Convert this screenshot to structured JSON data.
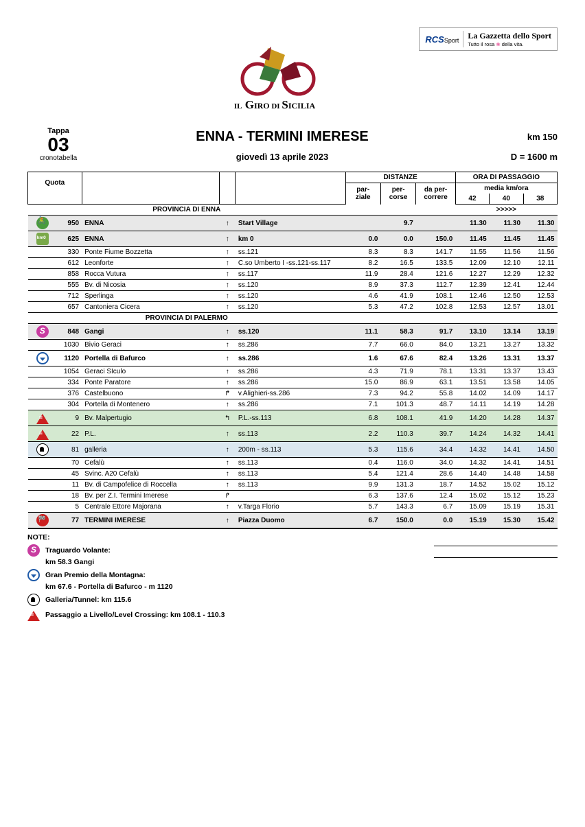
{
  "sponsor": {
    "rcs": "RCS",
    "rcs_sub": "Sport",
    "gazzetta": "La Gazzetta dello Sport",
    "sub_pre": "Tutto il rosa",
    "sub_post": "della vita."
  },
  "logo_text": "IL GIRO DI SICILIA",
  "stage": {
    "label": "Tappa",
    "number": "03",
    "sub": "cronotabella"
  },
  "title": "ENNA - TERMINI IMERESE",
  "date": "giovedì 13 aprile 2023",
  "distance": "km 150",
  "elevation": "D = 1600 m",
  "head": {
    "quota": "Quota",
    "distanze": "DISTANZE",
    "ora": "ORA DI PASSAGGIO",
    "parziale": "par-\nziale",
    "percorse": "per-\ncorse",
    "dapercorrere": "da per-\ncorrere",
    "media": "media km/ora",
    "s42": "42",
    "s40": "40",
    "s38": "38",
    "arrows": ">>>>>"
  },
  "sections": {
    "enna": "PROVINCIA DI ENNA",
    "palermo": "PROVINCIA DI PALERMO"
  },
  "rows": [
    {
      "icon": "start",
      "q": "950",
      "loc": "ENNA",
      "ar": "↑",
      "road": "Start Village",
      "pz": "",
      "pc": "9.7",
      "dp": "",
      "t42": "11.30",
      "t40": "11.30",
      "t38": "11.30",
      "cls": "bold gray"
    },
    {
      "icon": "km0",
      "q": "625",
      "loc": "ENNA",
      "ar": "↑",
      "road": "km 0",
      "pz": "0.0",
      "pc": "0.0",
      "dp": "150.0",
      "t42": "11.45",
      "t40": "11.45",
      "t38": "11.45",
      "cls": "bold gray"
    },
    {
      "icon": "",
      "q": "330",
      "loc": "Ponte Fiume Bozzetta",
      "ar": "↑",
      "road": "ss.121",
      "pz": "8.3",
      "pc": "8.3",
      "dp": "141.7",
      "t42": "11.55",
      "t40": "11.56",
      "t38": "11.56",
      "cls": ""
    },
    {
      "icon": "",
      "q": "612",
      "loc": "Leonforte",
      "ar": "↑",
      "road": "C.so Umberto I -ss.121-ss.117",
      "pz": "8.2",
      "pc": "16.5",
      "dp": "133.5",
      "t42": "12.09",
      "t40": "12.10",
      "t38": "12.11",
      "cls": ""
    },
    {
      "icon": "",
      "q": "858",
      "loc": "Rocca Vutura",
      "ar": "↑",
      "road": "ss.117",
      "pz": "11.9",
      "pc": "28.4",
      "dp": "121.6",
      "t42": "12.27",
      "t40": "12.29",
      "t38": "12.32",
      "cls": ""
    },
    {
      "icon": "",
      "q": "555",
      "loc": "Bv. di Nicosia",
      "ar": "↑",
      "road": "ss.120",
      "pz": "8.9",
      "pc": "37.3",
      "dp": "112.7",
      "t42": "12.39",
      "t40": "12.41",
      "t38": "12.44",
      "cls": ""
    },
    {
      "icon": "",
      "q": "712",
      "loc": "Sperlinga",
      "ar": "↑",
      "road": "ss.120",
      "pz": "4.6",
      "pc": "41.9",
      "dp": "108.1",
      "t42": "12.46",
      "t40": "12.50",
      "t38": "12.53",
      "cls": ""
    },
    {
      "icon": "",
      "q": "657",
      "loc": "Cantoniera Cicera",
      "ar": "↑",
      "road": "ss.120",
      "pz": "5.3",
      "pc": "47.2",
      "dp": "102.8",
      "t42": "12.53",
      "t40": "12.57",
      "t38": "13.01",
      "cls": ""
    }
  ],
  "rows2": [
    {
      "icon": "sprint",
      "q": "848",
      "loc": "Gangi",
      "ar": "↑",
      "road": "ss.120",
      "pz": "11.1",
      "pc": "58.3",
      "dp": "91.7",
      "t42": "13.10",
      "t40": "13.14",
      "t38": "13.19",
      "cls": "bold gray"
    },
    {
      "icon": "",
      "q": "1030",
      "loc": "Bivio Geraci",
      "ar": "↑",
      "road": "ss.286",
      "pz": "7.7",
      "pc": "66.0",
      "dp": "84.0",
      "t42": "13.21",
      "t40": "13.27",
      "t38": "13.32",
      "cls": ""
    },
    {
      "icon": "gpm",
      "q": "1120",
      "loc": "Portella di Bafurco",
      "ar": "↑",
      "road": "ss.286",
      "pz": "1.6",
      "pc": "67.6",
      "dp": "82.4",
      "t42": "13.26",
      "t40": "13.31",
      "t38": "13.37",
      "cls": "bold"
    },
    {
      "icon": "",
      "q": "1054",
      "loc": "Geraci SIculo",
      "ar": "↑",
      "road": "ss.286",
      "pz": "4.3",
      "pc": "71.9",
      "dp": "78.1",
      "t42": "13.31",
      "t40": "13.37",
      "t38": "13.43",
      "cls": ""
    },
    {
      "icon": "",
      "q": "334",
      "loc": "Ponte Paratore",
      "ar": "↑",
      "road": "ss.286",
      "pz": "15.0",
      "pc": "86.9",
      "dp": "63.1",
      "t42": "13.51",
      "t40": "13.58",
      "t38": "14.05",
      "cls": ""
    },
    {
      "icon": "",
      "q": "376",
      "loc": "Castelbuono",
      "ar": "↱",
      "road": "v.Alighieri-ss.286",
      "pz": "7.3",
      "pc": "94.2",
      "dp": "55.8",
      "t42": "14.02",
      "t40": "14.09",
      "t38": "14.17",
      "cls": ""
    },
    {
      "icon": "",
      "q": "304",
      "loc": "Portella di Montenero",
      "ar": "↑",
      "road": "ss.286",
      "pz": "7.1",
      "pc": "101.3",
      "dp": "48.7",
      "t42": "14.11",
      "t40": "14.19",
      "t38": "14.28",
      "cls": ""
    },
    {
      "icon": "cross",
      "q": "9",
      "loc": "Bv. Malpertugio",
      "ar": "↰",
      "road": "P.L.-ss.113",
      "pz": "6.8",
      "pc": "108.1",
      "dp": "41.9",
      "t42": "14.20",
      "t40": "14.28",
      "t38": "14.37",
      "cls": "green"
    },
    {
      "icon": "cross",
      "q": "22",
      "loc": "P.L.",
      "ar": "↑",
      "road": "ss.113",
      "pz": "2.2",
      "pc": "110.3",
      "dp": "39.7",
      "t42": "14.24",
      "t40": "14.32",
      "t38": "14.41",
      "cls": "green"
    },
    {
      "icon": "tunnel",
      "q": "81",
      "loc": "galleria",
      "ar": "↑",
      "road": "200m - ss.113",
      "pz": "5.3",
      "pc": "115.6",
      "dp": "34.4",
      "t42": "14.32",
      "t40": "14.41",
      "t38": "14.50",
      "cls": "blue"
    },
    {
      "icon": "",
      "q": "70",
      "loc": "Cefalù",
      "ar": "↑",
      "road": "ss.113",
      "pz": "0.4",
      "pc": "116.0",
      "dp": "34.0",
      "t42": "14.32",
      "t40": "14.41",
      "t38": "14.51",
      "cls": ""
    },
    {
      "icon": "",
      "q": "45",
      "loc": "Svinc. A20 Cefalù",
      "ar": "↑",
      "road": "ss.113",
      "pz": "5.4",
      "pc": "121.4",
      "dp": "28.6",
      "t42": "14.40",
      "t40": "14.48",
      "t38": "14.58",
      "cls": ""
    },
    {
      "icon": "",
      "q": "11",
      "loc": "Bv. di Campofelice di Roccella",
      "ar": "↑",
      "road": "ss.113",
      "pz": "9.9",
      "pc": "131.3",
      "dp": "18.7",
      "t42": "14.52",
      "t40": "15.02",
      "t38": "15.12",
      "cls": ""
    },
    {
      "icon": "",
      "q": "18",
      "loc": "Bv. per Z.I. Termini Imerese",
      "ar": "↱",
      "road": "",
      "pz": "6.3",
      "pc": "137.6",
      "dp": "12.4",
      "t42": "15.02",
      "t40": "15.12",
      "t38": "15.23",
      "cls": ""
    },
    {
      "icon": "",
      "q": "5",
      "loc": "Centrale Ettore Majorana",
      "ar": "↑",
      "road": "v.Targa Florio",
      "pz": "5.7",
      "pc": "143.3",
      "dp": "6.7",
      "t42": "15.09",
      "t40": "15.19",
      "t38": "15.31",
      "cls": ""
    },
    {
      "icon": "finish",
      "q": "77",
      "loc": "TERMINI IMERESE",
      "ar": "↑",
      "road": "Piazza Duomo",
      "pz": "6.7",
      "pc": "150.0",
      "dp": "0.0",
      "t42": "15.19",
      "t40": "15.30",
      "t38": "15.42",
      "cls": "bold gray finish"
    }
  ],
  "notes": {
    "title": "NOTE:",
    "sprint_t": "Traguardo Volante:",
    "sprint_d": "km 58.3    Gangi",
    "gpm_t": "Gran Premio della Montagna:",
    "gpm_d": "km 67.6 - Portella di Bafurco - m 1120",
    "tunnel_t": "Galleria/Tunnel:  km 115.6",
    "cross_t": "Passaggio a Livello/Level Crossing: km 108.1 - 110.3"
  }
}
